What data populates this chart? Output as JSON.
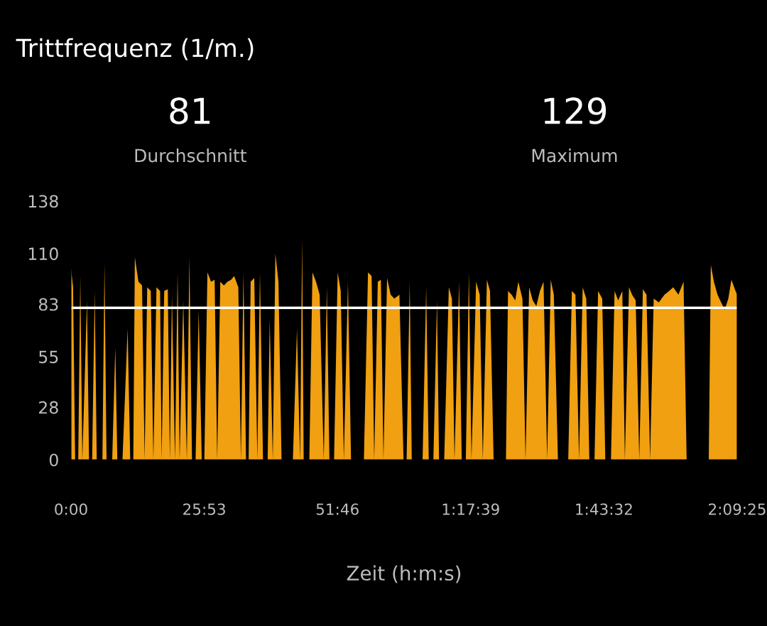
{
  "chart_data": {
    "type": "area",
    "title": "Trittfrequenz (1/m.)",
    "xlabel": "Zeit (h:m:s)",
    "annotations": [
      "81",
      "Durchschnitt",
      "129",
      "Maximum"
    ],
    "x": [
      0,
      0.4,
      0.8,
      1.4,
      1.8,
      2.2,
      3.1,
      3.5,
      4.1,
      4.6,
      5.0,
      6.1,
      6.5,
      6.9,
      8.0,
      8.6,
      9.0,
      10.0,
      11.0,
      11.5,
      12.1,
      12.4,
      13.1,
      13.8,
      14.3,
      14.8,
      15.5,
      16.0,
      16.6,
      17.3,
      17.6,
      18.1,
      18.8,
      19.2,
      19.6,
      20.2,
      20.7,
      21.1,
      21.8,
      22.5,
      23.0,
      23.5,
      24.2,
      24.8,
      25.4,
      25.9,
      26.5,
      27.2,
      27.9,
      28.4,
      29.0,
      29.7,
      30.4,
      31.1,
      31.7,
      32.5,
      33.0,
      33.5,
      34.0,
      34.5,
      34.9,
      35.6,
      36.2,
      36.7,
      37.3,
      38.2,
      38.6,
      39.2,
      39.7,
      40.3,
      40.9,
      41.8,
      43.1,
      43.9,
      44.5,
      44.9,
      45.2,
      46.3,
      46.9,
      47.6,
      48.3,
      49.1,
      49.7,
      50.2,
      51.1,
      51.8,
      52.4,
      53.0,
      53.8,
      54.4,
      55.7,
      56.9,
      57.7,
      58.4,
      58.9,
      59.6,
      60.2,
      60.7,
      61.4,
      62.1,
      62.8,
      63.8,
      64.6,
      65.2,
      65.8,
      66.2,
      68.3,
      69.0,
      69.5,
      70.4,
      71.1,
      71.5,
      72.5,
      73.4,
      74.0,
      74.5,
      75.4,
      75.9,
      76.7,
      77.3,
      77.8,
      78.7,
      79.4,
      80.0,
      80.8,
      81.4,
      82.1,
      84.5,
      84.9,
      85.6,
      86.3,
      86.9,
      87.7,
      88.3,
      89.0,
      89.7,
      90.4,
      91.1,
      91.8,
      92.5,
      93.2,
      93.8,
      94.6,
      96.6,
      97.3,
      98.0,
      98.7,
      99.4,
      100.1,
      100.7,
      101.7,
      102.4,
      103.2,
      103.8,
      104.9,
      105.6,
      106.3,
      107.1,
      107.6,
      108.4,
      109.0,
      109.7,
      110.4,
      111.1,
      111.8,
      112.5,
      113.2,
      114.2,
      115.3,
      116.2,
      117.0,
      118.0,
      119.0,
      119.6,
      120.4,
      123.9,
      124.3,
      124.9,
      125.6,
      126.3,
      127.0,
      127.7,
      128.3,
      129.1,
      129.417
    ],
    "series": [
      {
        "color": "#f0a010",
        "values": [
          102,
          92,
          0,
          0,
          98,
          0,
          85,
          0,
          0,
          90,
          0,
          0,
          105,
          0,
          0,
          60,
          0,
          0,
          70,
          0,
          0,
          108,
          95,
          93,
          0,
          92,
          90,
          0,
          92,
          90,
          0,
          90,
          91,
          0,
          88,
          0,
          100,
          0,
          85,
          0,
          108,
          0,
          0,
          80,
          0,
          0,
          100,
          95,
          96,
          0,
          95,
          93,
          95,
          96,
          98,
          92,
          0,
          100,
          0,
          0,
          95,
          97,
          0,
          100,
          0,
          0,
          75,
          0,
          110,
          95,
          0,
          0,
          0,
          70,
          0,
          118,
          0,
          0,
          100,
          95,
          88,
          0,
          92,
          0,
          0,
          100,
          90,
          0,
          95,
          0,
          0,
          0,
          100,
          98,
          0,
          95,
          96,
          0,
          97,
          88,
          86,
          88,
          0,
          0,
          95,
          0,
          0,
          92,
          0,
          0,
          85,
          0,
          0,
          92,
          86,
          0,
          95,
          0,
          0,
          100,
          0,
          95,
          88,
          0,
          96,
          90,
          0,
          0,
          90,
          88,
          85,
          95,
          86,
          0,
          92,
          85,
          82,
          90,
          95,
          0,
          96,
          88,
          0,
          0,
          90,
          88,
          0,
          92,
          86,
          0,
          0,
          90,
          86,
          0,
          0,
          90,
          85,
          90,
          0,
          92,
          88,
          85,
          0,
          91,
          88,
          0,
          86,
          84,
          88,
          90,
          92,
          88,
          95,
          0,
          0,
          0,
          104,
          95,
          88,
          84,
          80,
          86,
          96,
          90,
          88
        ]
      }
    ],
    "xlim": [
      0,
      129.417
    ],
    "xticks": [
      {
        "value": 0,
        "label": "0:00"
      },
      {
        "value": 25.883,
        "label": "25:53"
      },
      {
        "value": 51.767,
        "label": "51:46"
      },
      {
        "value": 77.65,
        "label": "1:17:39"
      },
      {
        "value": 103.533,
        "label": "1:43:32"
      },
      {
        "value": 129.417,
        "label": "2:09:25"
      }
    ],
    "ylim": [
      0,
      138
    ],
    "yticks": [
      0,
      28,
      55,
      83,
      110,
      138
    ],
    "ref_lines": [
      {
        "axis": "y",
        "value": 81,
        "color": "#ffffff"
      }
    ]
  }
}
